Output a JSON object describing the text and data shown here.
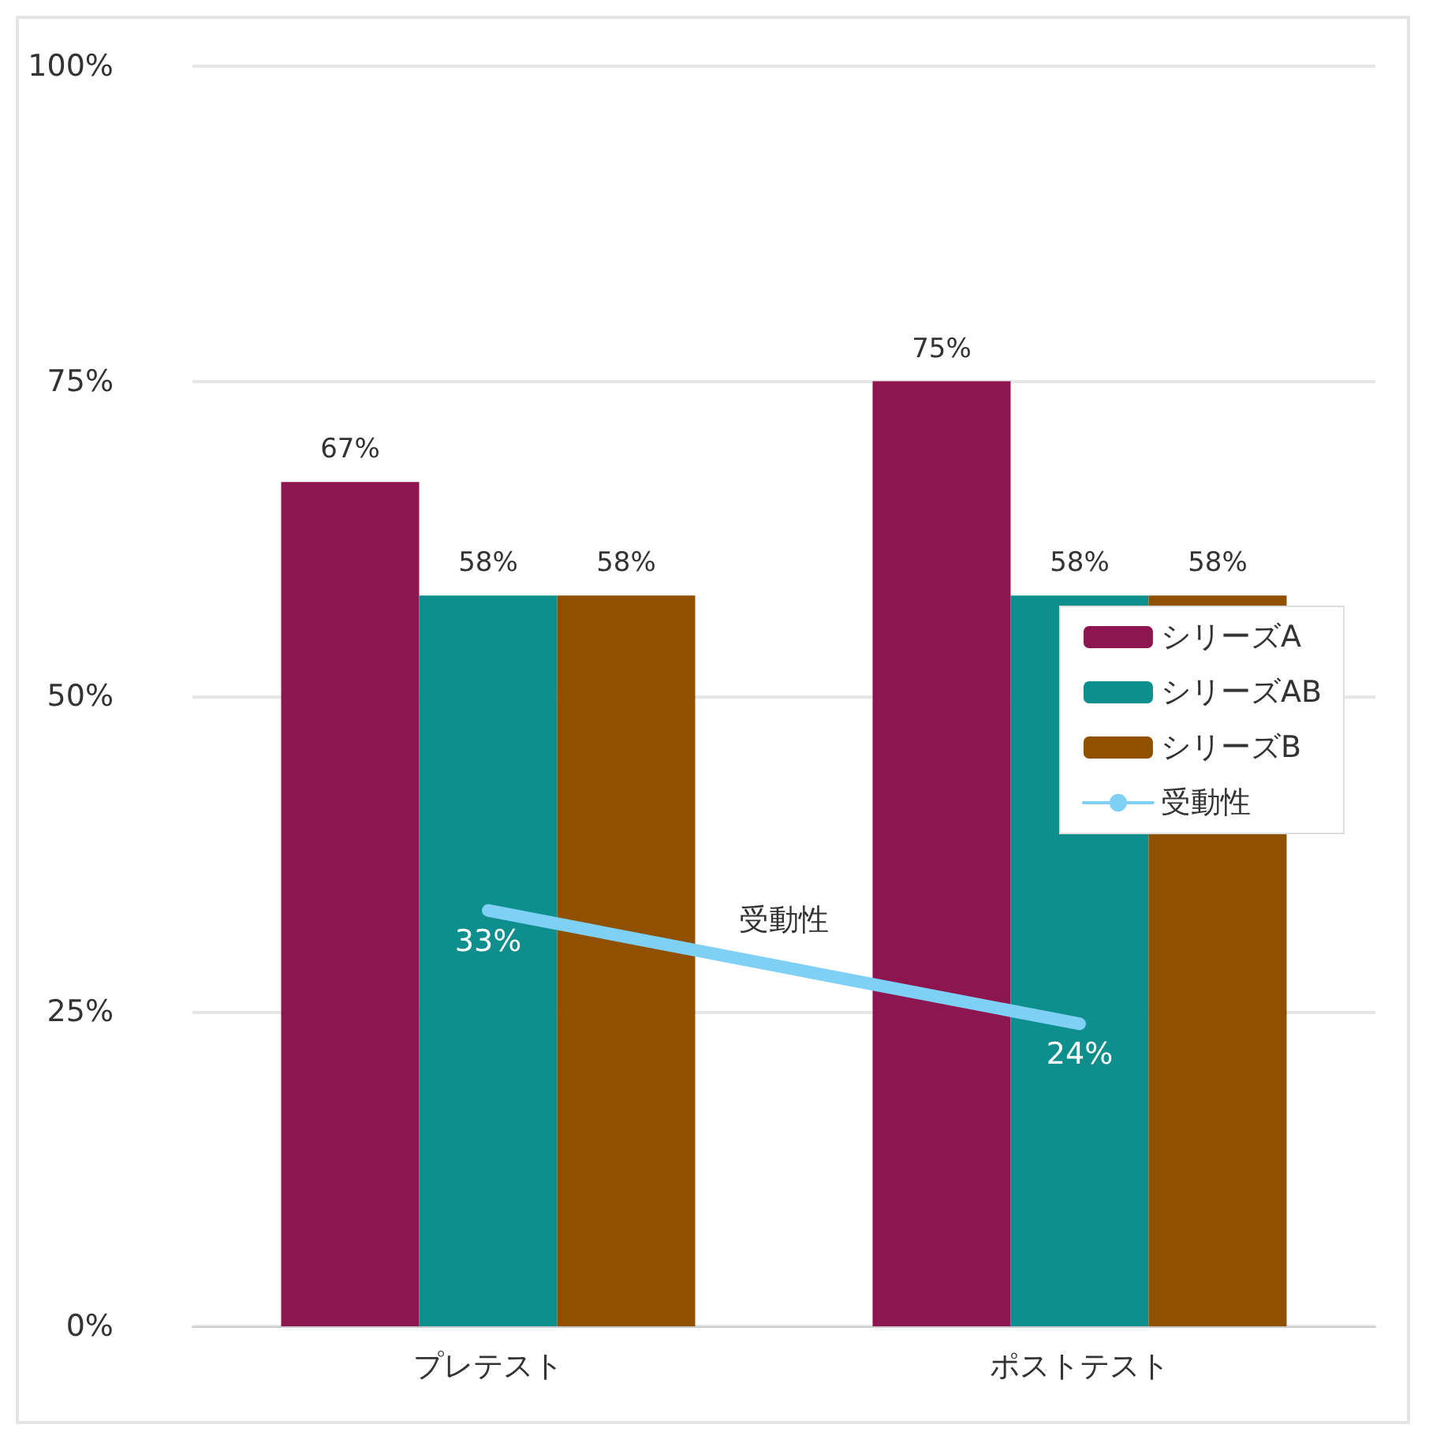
{
  "chart_data": {
    "type": "bar",
    "categories": [
      "プレテスト",
      "ポストテスト"
    ],
    "series": [
      {
        "name": "シリーズA",
        "color": "#8e1650",
        "values": [
          67,
          75
        ],
        "value_labels": [
          "67%",
          "75%"
        ]
      },
      {
        "name": "シリーズAB",
        "color": "#0f8e8e",
        "values": [
          58,
          58
        ],
        "value_labels": [
          "58%",
          "58%"
        ]
      },
      {
        "name": "シリーズB",
        "color": "#8f5000",
        "values": [
          58,
          58
        ],
        "value_labels": [
          "58%",
          "58%"
        ]
      },
      {
        "name": "受動性",
        "type": "line",
        "color": "#7fd0f5",
        "values": [
          33,
          24
        ],
        "value_labels": [
          "33%",
          "24%"
        ],
        "marker": "none"
      }
    ],
    "ylim": [
      0,
      100
    ],
    "yticks": [
      {
        "value": 0,
        "label": "0%"
      },
      {
        "value": 25,
        "label": "25%"
      },
      {
        "value": 50,
        "label": "50%"
      },
      {
        "value": 75,
        "label": "75%"
      },
      {
        "value": 100,
        "label": "100%"
      }
    ],
    "grid": "y",
    "legend": "right"
  }
}
